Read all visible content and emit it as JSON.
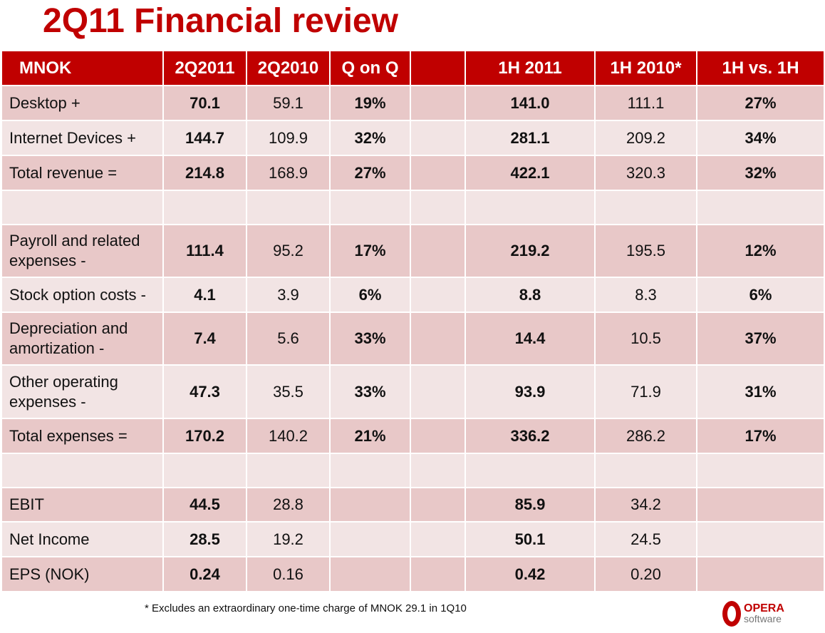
{
  "title": "2Q11 Financial review",
  "headers": [
    "MNOK",
    "2Q2011",
    "2Q2010",
    "Q on Q",
    "",
    "1H 2011",
    "1H 2010*",
    "1H vs. 1H"
  ],
  "rows": [
    [
      "Desktop +",
      "70.1",
      "59.1",
      "19%",
      "",
      "141.0",
      "111.1",
      "27%"
    ],
    [
      "Internet Devices +",
      "144.7",
      "109.9",
      "32%",
      "",
      "281.1",
      "209.2",
      "34%"
    ],
    [
      "Total revenue =",
      "214.8",
      "168.9",
      "27%",
      "",
      "422.1",
      "320.3",
      "32%"
    ],
    [
      "",
      "",
      "",
      "",
      "",
      "",
      "",
      ""
    ],
    [
      "Payroll and related expenses -",
      "111.4",
      "95.2",
      "17%",
      "",
      "219.2",
      "195.5",
      "12%"
    ],
    [
      "Stock option costs -",
      "4.1",
      "3.9",
      "6%",
      "",
      "8.8",
      "8.3",
      "6%"
    ],
    [
      "Depreciation and amortization -",
      "7.4",
      "5.6",
      "33%",
      "",
      "14.4",
      "10.5",
      "37%"
    ],
    [
      "Other operating expenses -",
      "47.3",
      "35.5",
      "33%",
      "",
      "93.9",
      "71.9",
      "31%"
    ],
    [
      "Total expenses  =",
      "170.2",
      "140.2",
      "21%",
      "",
      "336.2",
      "286.2",
      "17%"
    ],
    [
      "",
      "",
      "",
      "",
      "",
      "",
      "",
      ""
    ],
    [
      "EBIT",
      "44.5",
      "28.8",
      "",
      "",
      "85.9",
      "34.2",
      ""
    ],
    [
      "Net Income",
      "28.5",
      "19.2",
      "",
      "",
      "50.1",
      "24.5",
      ""
    ],
    [
      "EPS (NOK)",
      "0.24",
      "0.16",
      "",
      "",
      "0.42",
      "0.20",
      ""
    ]
  ],
  "footnote": "* Excludes an extraordinary one-time charge of MNOK 29.1 in 1Q10",
  "logo": {
    "name": "OPERA",
    "sub": "software"
  }
}
